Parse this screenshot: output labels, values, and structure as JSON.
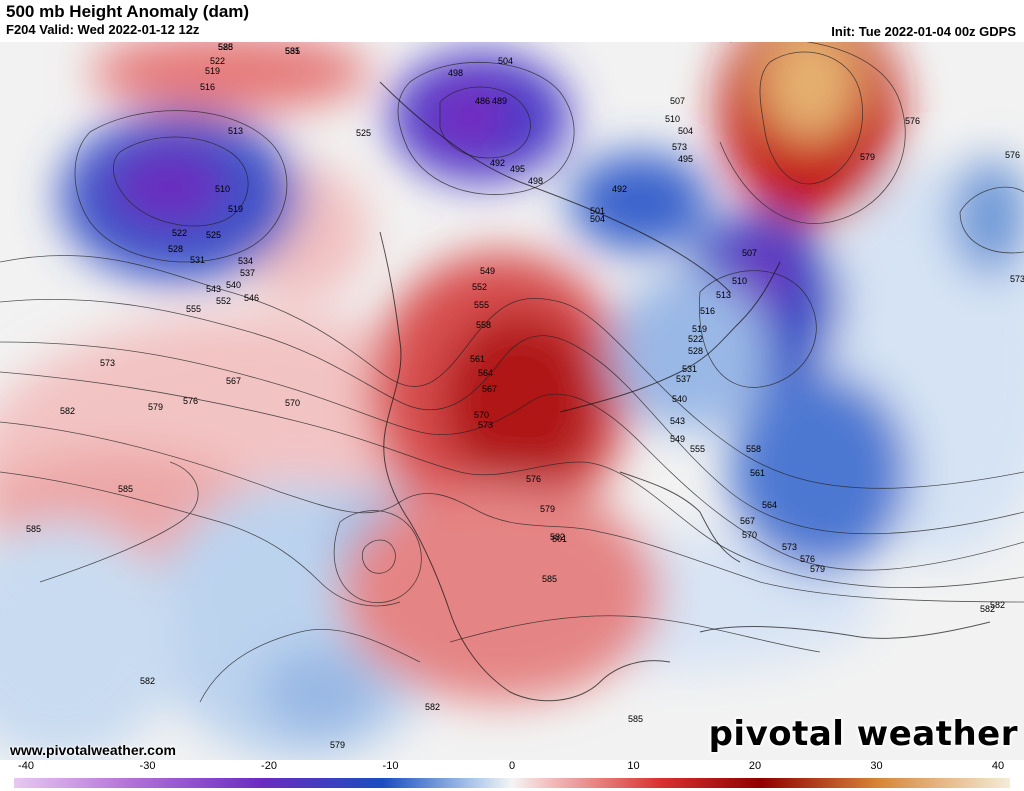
{
  "header": {
    "title": "500 mb Height Anomaly (dam)",
    "valid": "F204 Valid: Wed 2022-01-12 12z",
    "init": "Init: Tue 2022-01-04 00z GDPS"
  },
  "footer": {
    "url": "www.pivotalweather.com",
    "logo": "pivotal weather"
  },
  "colorbar": {
    "ticks": [
      "-40",
      "-30",
      "-20",
      "-10",
      "0",
      "10",
      "20",
      "30",
      "40"
    ],
    "min": -40,
    "max": 40
  },
  "contour_labels": [
    "528",
    "531",
    "522",
    "519",
    "516",
    "513",
    "510",
    "519",
    "522",
    "525",
    "528",
    "531",
    "534",
    "537",
    "540",
    "543",
    "546",
    "552",
    "555",
    "525",
    "498",
    "504",
    "486",
    "489",
    "492",
    "495",
    "498",
    "501",
    "504",
    "507",
    "510",
    "504",
    "495",
    "492",
    "573",
    "579",
    "576",
    "576",
    "573",
    "567",
    "570",
    "579",
    "576",
    "582",
    "585",
    "585",
    "573",
    "582",
    "579",
    "582",
    "585",
    "585",
    "549",
    "552",
    "555",
    "558",
    "561",
    "564",
    "567",
    "570",
    "573",
    "576",
    "579",
    "582",
    "501",
    "507",
    "510",
    "513",
    "516",
    "519",
    "522",
    "528",
    "531",
    "537",
    "540",
    "543",
    "549",
    "555",
    "558",
    "561",
    "564",
    "567",
    "570",
    "573",
    "576",
    "579",
    "582",
    "582",
    "585",
    "585"
  ],
  "colors": {
    "positive_max": "#f4e4c0",
    "positive_strong": "#a00000",
    "positive_weak": "#f7c8c8",
    "negative_weak": "#c8daf0",
    "negative_strong": "#1a4ec0",
    "negative_max": "#7a2ac0"
  }
}
